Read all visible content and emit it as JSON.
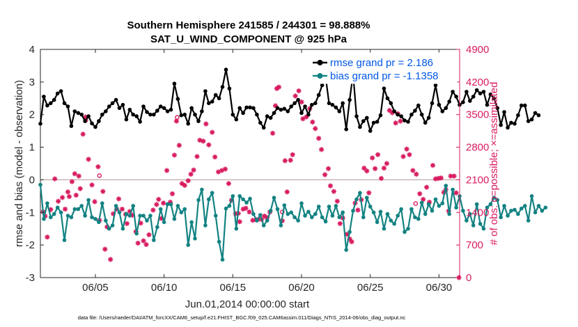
{
  "chart_data": {
    "type": "line",
    "title_line1": "Southern Hemisphere 241585 / 244301 = 98.888%",
    "title_line2": "SAT_U_WIND_COMPONENT @ 925 hPa",
    "ylabel_left": "rmse and bias (model - observation)",
    "ylabel_right": "# of obs: o=possible; ×=assimilated",
    "xlabel": "Jun.01,2014 00:00:00 start",
    "footer": "data file: /Users/raeder/DAI/ATM_forcXX/CAM6_setup/f.e21.FHIST_BGC.f09_025.CAM6assim.011/Diags_NTrS_2014-06/obs_diag_output.nc",
    "xlim": [
      1.0,
      31.5
    ],
    "ylim_left": [
      -3,
      4
    ],
    "ylim_right": [
      0,
      4900
    ],
    "left_ticks": [
      "-3",
      "-2",
      "-1",
      "0",
      "1",
      "2",
      "3",
      "4"
    ],
    "right_ticks": [
      "0",
      "700",
      "1400",
      "2100",
      "2800",
      "3500",
      "4200",
      "4900"
    ],
    "x_ticks": [
      {
        "x": 5,
        "label": "06/05"
      },
      {
        "x": 10,
        "label": "06/10"
      },
      {
        "x": 15,
        "label": "06/15"
      },
      {
        "x": 20,
        "label": "06/20"
      },
      {
        "x": 25,
        "label": "06/25"
      },
      {
        "x": 30,
        "label": "06/30"
      }
    ],
    "legend": [
      "rmse grand pr = 2.186",
      "bias grand pr = -1.1358"
    ],
    "colors": {
      "rmse": "#000000",
      "bias": "#138282",
      "obs": "#d81b60",
      "zero": "#c0a0a0"
    },
    "time_start": 1.0,
    "time_step": 0.25,
    "rmse": [
      1.72,
      2.55,
      2.28,
      2.35,
      2.45,
      2.65,
      2.72,
      2.35,
      2.25,
      1.65,
      2.1,
      2.05,
      2.0,
      1.8,
      1.95,
      1.73,
      1.62,
      1.8,
      2.0,
      2.1,
      2.25,
      2.35,
      2.45,
      2.2,
      2.3,
      1.85,
      2.15,
      2.0,
      1.95,
      1.78,
      2.25,
      2.08,
      2.0,
      2.0,
      2.12,
      2.25,
      2.2,
      2.1,
      2.15,
      2.95,
      2.48,
      1.98,
      2.0,
      1.72,
      2.2,
      2.0,
      1.8,
      2.1,
      2.72,
      2.35,
      2.4,
      2.6,
      2.5,
      2.85,
      3.38,
      2.8,
      2.0,
      1.85,
      2.2,
      2.05,
      2.22,
      2.22,
      2.2,
      2.0,
      1.75,
      1.6,
      1.95,
      1.9,
      2.05,
      2.2,
      2.15,
      2.18,
      2.1,
      2.25,
      2.35,
      2.45,
      2.05,
      2.25,
      2.0,
      2.3,
      2.35,
      2.6,
      2.9,
      3.15,
      2.35,
      2.3,
      2.22,
      2.1,
      2.35,
      1.55,
      2.45,
      3.25,
      1.95,
      1.62,
      1.8,
      1.9,
      1.5,
      1.75,
      1.78,
      1.98,
      2.8,
      2.5,
      2.35,
      2.1,
      2.0,
      1.95,
      1.82,
      1.78,
      2.0,
      2.12,
      2.28,
      2.0,
      1.75,
      1.9,
      2.35,
      2.9,
      2.3,
      2.1,
      2.2,
      2.4,
      2.7,
      2.55,
      2.3,
      2.38,
      2.7,
      2.42,
      2.55,
      2.75,
      2.65,
      2.7,
      2.3,
      2.62,
      2.5,
      2.2,
      1.68,
      2.08,
      1.6,
      1.75,
      1.72,
      1.98,
      2.28,
      2.28,
      1.8,
      1.85,
      2.05,
      1.98
    ],
    "bias": [
      -0.15,
      -1.2,
      -0.72,
      -1.15,
      -1.05,
      -0.85,
      -1.0,
      -1.85,
      -1.1,
      -1.15,
      -0.9,
      -0.9,
      -0.8,
      -1.1,
      -0.62,
      -1.15,
      -1.2,
      -1.3,
      -0.72,
      -1.25,
      -1.5,
      -1.4,
      -0.8,
      -1.0,
      -1.5,
      -1.05,
      -1.1,
      -0.8,
      -1.65,
      -1.1,
      -1.1,
      -1.25,
      -1.1,
      -1.85,
      -1.45,
      -0.9,
      -1.3,
      -0.75,
      -0.75,
      -1.2,
      -0.8,
      -1.0,
      -0.9,
      -2.0,
      -1.3,
      -1.8,
      -0.62,
      -0.3,
      -1.4,
      -0.6,
      -0.4,
      -1.1,
      -1.9,
      -2.45,
      -0.88,
      -0.8,
      -0.5,
      -1.5,
      -0.5,
      -0.6,
      -0.7,
      -0.58,
      -1.05,
      -1.25,
      -1.08,
      -1.4,
      -1.25,
      -0.95,
      -0.55,
      -0.9,
      -1.4,
      -0.78,
      -1.05,
      -1.0,
      -1.15,
      -1.25,
      -0.72,
      -1.1,
      -0.98,
      -1.15,
      -1.05,
      -0.82,
      -1.15,
      -1.28,
      -0.82,
      -1.1,
      -0.8,
      -1.15,
      -1.0,
      -2.15,
      -1.6,
      -0.95,
      -0.6,
      -0.4,
      -1.15,
      -0.55,
      -0.82,
      -1.0,
      -1.3,
      -0.98,
      -1.5,
      -1.05,
      -1.25,
      -1.35,
      -1.1,
      -0.9,
      -1.6,
      -1.5,
      -0.9,
      -1.15,
      -1.2,
      -0.7,
      -1.05,
      -0.75,
      -0.95,
      -0.6,
      -0.8,
      -0.72,
      -0.18,
      -1.05,
      -0.3,
      -0.85,
      -0.5,
      -0.95,
      -1.25,
      -1.05,
      -1.4,
      -0.75,
      -1.35,
      -1.5,
      -0.85,
      -0.75,
      -0.55,
      -0.62,
      -1.15,
      -0.8,
      -1.1,
      -0.95,
      -0.92,
      -1.05,
      -0.88,
      -0.8,
      -1.25,
      -0.5,
      -1.0,
      -0.8,
      -0.95,
      -0.85
    ],
    "obs_assimilated": [
      [
        1.2,
        1410
      ],
      [
        1.35,
        1320
      ],
      [
        1.5,
        870
      ],
      [
        1.75,
        1460
      ],
      [
        2.05,
        2120
      ],
      [
        2.3,
        1640
      ],
      [
        2.6,
        1720
      ],
      [
        2.8,
        1470
      ],
      [
        3.0,
        1840
      ],
      [
        3.1,
        1740
      ],
      [
        3.3,
        2060
      ],
      [
        3.5,
        2230
      ],
      [
        3.6,
        1770
      ],
      [
        3.8,
        2180
      ],
      [
        3.9,
        1910
      ],
      [
        4.1,
        3080
      ],
      [
        4.3,
        3450
      ],
      [
        4.5,
        2540
      ],
      [
        4.75,
        1990
      ],
      [
        4.95,
        1630
      ],
      [
        5.2,
        2380
      ],
      [
        5.3,
        1230
      ],
      [
        5.55,
        1850
      ],
      [
        5.7,
        610
      ],
      [
        5.85,
        1090
      ],
      [
        6.1,
        390
      ],
      [
        6.3,
        1370
      ],
      [
        6.55,
        1470
      ],
      [
        6.7,
        1690
      ],
      [
        6.95,
        1470
      ],
      [
        7.2,
        1360
      ],
      [
        7.3,
        1160
      ],
      [
        7.5,
        1420
      ],
      [
        7.7,
        1340
      ],
      [
        7.95,
        990
      ],
      [
        8.1,
        740
      ],
      [
        8.3,
        1170
      ],
      [
        8.5,
        790
      ],
      [
        8.7,
        710
      ],
      [
        8.9,
        920
      ],
      [
        9.2,
        1450
      ],
      [
        9.45,
        1570
      ],
      [
        9.6,
        1680
      ],
      [
        9.8,
        1270
      ],
      [
        9.95,
        1600
      ],
      [
        10.2,
        2300
      ],
      [
        10.45,
        1620
      ],
      [
        10.6,
        1800
      ],
      [
        10.75,
        2630
      ],
      [
        10.9,
        3360
      ],
      [
        11.1,
        2840
      ],
      [
        11.3,
        2020
      ],
      [
        11.5,
        1980
      ],
      [
        11.75,
        2080
      ],
      [
        11.95,
        2220
      ],
      [
        12.15,
        2310
      ],
      [
        12.4,
        2600
      ],
      [
        12.6,
        2950
      ],
      [
        12.85,
        2930
      ],
      [
        13.05,
        3300
      ],
      [
        13.25,
        2850
      ],
      [
        13.5,
        3120
      ],
      [
        13.7,
        2590
      ],
      [
        13.95,
        2270
      ],
      [
        14.2,
        2300
      ],
      [
        14.45,
        2330
      ],
      [
        14.7,
        2020
      ],
      [
        14.9,
        1660
      ],
      [
        15.2,
        1370
      ],
      [
        15.4,
        1380
      ],
      [
        15.5,
        1200
      ],
      [
        15.75,
        1470
      ],
      [
        15.95,
        1490
      ],
      [
        16.2,
        1410
      ],
      [
        16.45,
        1230
      ],
      [
        16.7,
        1240
      ],
      [
        16.85,
        1250
      ],
      [
        17.1,
        1250
      ],
      [
        17.3,
        1320
      ],
      [
        17.5,
        1290
      ],
      [
        17.7,
        1410
      ],
      [
        17.9,
        3100
      ],
      [
        18.1,
        3690
      ],
      [
        18.2,
        4060
      ],
      [
        18.35,
        4090
      ],
      [
        18.6,
        1220
      ],
      [
        18.8,
        2510
      ],
      [
        18.95,
        1840
      ],
      [
        19.2,
        2520
      ],
      [
        19.35,
        2640
      ],
      [
        19.55,
        3900
      ],
      [
        19.8,
        4010
      ],
      [
        20.0,
        3770
      ],
      [
        20.1,
        3410
      ],
      [
        20.35,
        3450
      ],
      [
        20.6,
        3630
      ],
      [
        20.8,
        3340
      ],
      [
        21.0,
        3200
      ],
      [
        21.25,
        2990
      ],
      [
        21.45,
        2750
      ],
      [
        21.7,
        2210
      ],
      [
        21.95,
        2340
      ],
      [
        22.1,
        1970
      ],
      [
        22.35,
        1850
      ],
      [
        22.6,
        1640
      ],
      [
        22.8,
        1160
      ],
      [
        23.0,
        1280
      ],
      [
        23.3,
        930
      ],
      [
        23.5,
        830
      ],
      [
        23.65,
        770
      ],
      [
        23.9,
        1600
      ],
      [
        24.1,
        1450
      ],
      [
        24.35,
        1670
      ],
      [
        24.55,
        2350
      ],
      [
        24.75,
        2290
      ],
      [
        24.9,
        1820
      ],
      [
        25.15,
        2570
      ],
      [
        25.35,
        2340
      ],
      [
        25.55,
        2640
      ],
      [
        25.8,
        2130
      ],
      [
        26.0,
        2350
      ],
      [
        26.2,
        2450
      ],
      [
        26.4,
        3590
      ],
      [
        26.6,
        3540
      ],
      [
        26.85,
        3320
      ],
      [
        27.0,
        3520
      ],
      [
        27.2,
        3360
      ],
      [
        27.4,
        2600
      ],
      [
        27.65,
        2760
      ],
      [
        27.85,
        2640
      ],
      [
        28.1,
        2300
      ],
      [
        28.35,
        2220
      ],
      [
        28.6,
        1800
      ],
      [
        28.85,
        1680
      ],
      [
        29.1,
        1940
      ],
      [
        29.3,
        1620
      ],
      [
        29.55,
        2410
      ],
      [
        29.75,
        2120
      ],
      [
        29.95,
        2130
      ],
      [
        30.15,
        2140
      ],
      [
        30.35,
        1830
      ],
      [
        30.5,
        1890
      ],
      [
        30.7,
        1430
      ],
      [
        30.85,
        2180
      ],
      [
        31.1,
        2180
      ],
      [
        31.25,
        1820
      ],
      [
        31.45,
        0
      ]
    ],
    "obs_possible": [
      [
        4.3,
        3380
      ],
      [
        5.3,
        2190
      ],
      [
        10.95,
        3440
      ],
      [
        18.6,
        1410
      ],
      [
        28.3,
        1590
      ]
    ]
  }
}
